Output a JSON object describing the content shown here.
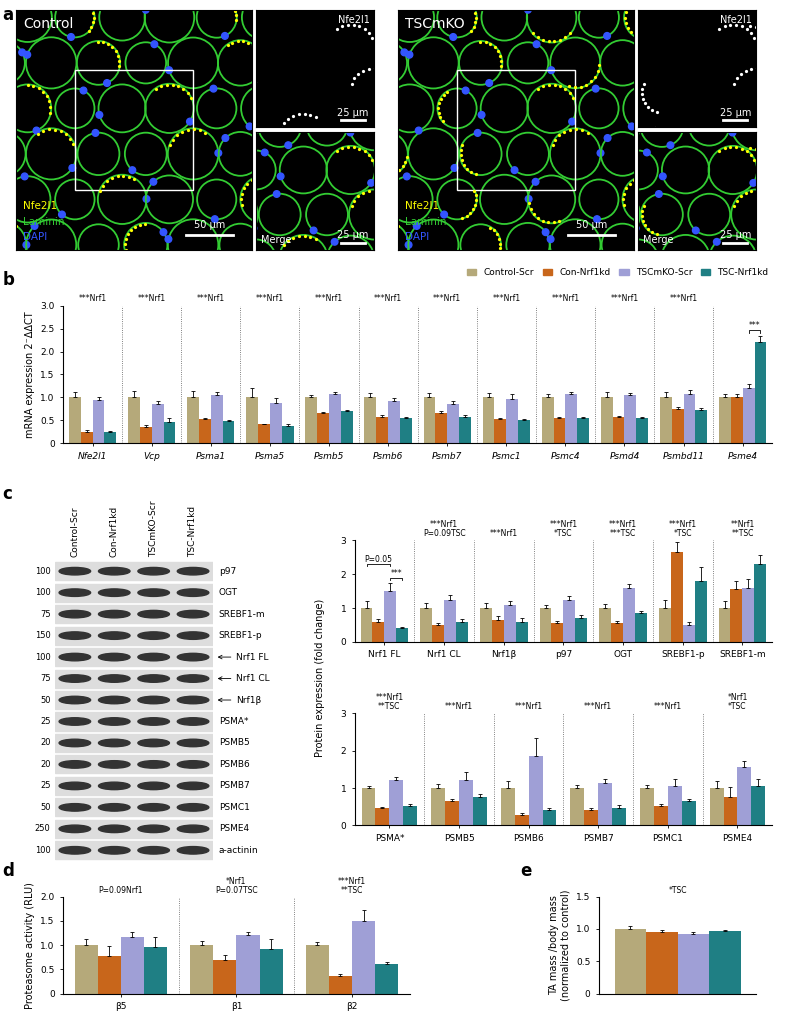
{
  "panel_labels": [
    "a",
    "b",
    "c",
    "d",
    "e"
  ],
  "images": [
    {
      "title": "Control",
      "channels": [
        {
          "name": "Nfe2l1",
          "color": "#ffff00"
        },
        {
          "name": "Laminin",
          "color": "#33cc33"
        },
        {
          "name": "DAPI",
          "color": "#3355ff"
        }
      ],
      "scale_bar": "50 µm",
      "insets": [
        {
          "label": "Nfe2l1",
          "scale_bar": "25 µm"
        },
        {
          "label": "Merge",
          "scale_bar": "25 µm"
        }
      ]
    },
    {
      "title": "TSCmKO",
      "channels": [
        {
          "name": "Nfe2l1",
          "color": "#ffff00"
        },
        {
          "name": "Laminin",
          "color": "#33cc33"
        },
        {
          "name": "DAPI",
          "color": "#3355ff"
        }
      ],
      "scale_bar": "50 µm",
      "insets": [
        {
          "label": "Nfe2l1",
          "scale_bar": "25 µm"
        },
        {
          "label": "Merge",
          "scale_bar": "25 µm"
        }
      ]
    }
  ],
  "blot": {
    "lanes": [
      "Control-Scr",
      "Con-Nrf1kd",
      "TSCmKO-Scr",
      "TSC-Nrf1kd"
    ],
    "rows": [
      {
        "label": "p97",
        "marker": 100
      },
      {
        "label": "OGT",
        "marker": 100
      },
      {
        "label": "SREBF1-m",
        "marker": 75
      },
      {
        "label": "SREBF1-p",
        "marker": 150
      },
      {
        "label": "Nrf1 FL",
        "marker": 100,
        "arrow": true
      },
      {
        "label": "Nrf1 CL",
        "marker": 75,
        "arrow": true
      },
      {
        "label": "Nrf1β",
        "marker": 50,
        "arrow": true
      },
      {
        "label": "PSMA*",
        "marker": 25
      },
      {
        "label": "PSMB5",
        "marker": 20
      },
      {
        "label": "PSMB6",
        "marker": 20
      },
      {
        "label": "PSMB7",
        "marker": 25
      },
      {
        "label": "PSMC1",
        "marker": 50
      },
      {
        "label": "PSME4",
        "marker": 250
      },
      {
        "label": "a-actinin",
        "marker": 100
      }
    ]
  },
  "chart_data": [
    {
      "type": "bar",
      "ylabel": "mRNA expression 2⁻ΔΔCT",
      "categories": [
        "Nfe2l1",
        "Vcp",
        "Psma1",
        "Psma5",
        "Psmb5",
        "Psmb6",
        "Psmb7",
        "Psmc1",
        "Psmc4",
        "Psmd4",
        "Psmbd11",
        "Psme4"
      ],
      "series": [
        {
          "name": "Control-Scr",
          "color": "#b5a97a",
          "values": [
            1,
            1,
            1,
            1,
            1,
            1,
            1,
            1,
            1,
            1,
            1,
            1
          ],
          "errors": [
            0.12,
            0.15,
            0.13,
            0.2,
            0.05,
            0.1,
            0.1,
            0.1,
            0.08,
            0.12,
            0.12,
            0.08
          ]
        },
        {
          "name": "Con-Nrf1kd",
          "color": "#c8661b",
          "values": [
            0.25,
            0.36,
            0.53,
            0.41,
            0.65,
            0.57,
            0.67,
            0.52,
            0.55,
            0.57,
            0.75,
            1.0
          ],
          "errors": [
            0.03,
            0.04,
            0.03,
            0.02,
            0.03,
            0.04,
            0.03,
            0.03,
            0.03,
            0.03,
            0.05,
            0.08
          ]
        },
        {
          "name": "TSCmKO-Scr",
          "color": "#9f9fd6",
          "values": [
            0.95,
            0.85,
            1.05,
            0.88,
            1.07,
            0.93,
            0.85,
            0.97,
            1.07,
            1.05,
            1.07,
            1.2
          ],
          "errors": [
            0.05,
            0.08,
            0.06,
            0.1,
            0.04,
            0.05,
            0.07,
            0.1,
            0.04,
            0.05,
            0.1,
            0.1
          ]
        },
        {
          "name": "TSC-Nrf1kd",
          "color": "#1f7f84",
          "values": [
            0.24,
            0.47,
            0.49,
            0.38,
            0.7,
            0.55,
            0.57,
            0.5,
            0.55,
            0.55,
            0.72,
            2.2
          ],
          "errors": [
            0.02,
            0.08,
            0.02,
            0.04,
            0.03,
            0.03,
            0.04,
            0.03,
            0.03,
            0.03,
            0.05,
            0.15
          ]
        }
      ],
      "ylim": [
        0,
        3
      ],
      "yticks": [
        0,
        0.5,
        {
          "value": 1,
          "label": "1.0"
        },
        1.5,
        {
          "value": 2,
          "label": "2.0"
        },
        2.5,
        {
          "value": 3,
          "label": "3.0"
        }
      ],
      "legend": "upper right",
      "annotations": [
        {
          "category": "Nfe2l1",
          "text": "***Nrf1"
        },
        {
          "category": "Vcp",
          "text": "***Nrf1"
        },
        {
          "category": "Psma1",
          "text": "***Nrf1"
        },
        {
          "category": "Psma5",
          "text": "***Nrf1"
        },
        {
          "category": "Psmb5",
          "text": "***Nrf1"
        },
        {
          "category": "Psmb6",
          "text": "***Nrf1"
        },
        {
          "category": "Psmb7",
          "text": "***Nrf1"
        },
        {
          "category": "Psmc1",
          "text": "***Nrf1"
        },
        {
          "category": "Psmc4",
          "text": "***Nrf1"
        },
        {
          "category": "Psmd4",
          "text": "***Nrf1"
        },
        {
          "category": "Psmbd11",
          "text": "***Nrf1"
        },
        {
          "category": "Psme4",
          "text": "***",
          "between": [
            "TSCmKO-Scr",
            "TSC-Nrf1kd"
          ]
        }
      ]
    },
    {
      "type": "bar",
      "ylabel": "Protein expression (fold change)",
      "categories": [
        "Nrf1 FL",
        "Nrf1 CL",
        "Nrf1β",
        "p97",
        "OGT",
        "SREBF1-p",
        "SREBF1-m"
      ],
      "series": [
        {
          "name": "Control-Scr",
          "color": "#b5a97a",
          "values": [
            1,
            1,
            1,
            1,
            1,
            1,
            1
          ],
          "errors": [
            0.2,
            0.15,
            0.15,
            0.1,
            0.12,
            0.25,
            0.2
          ]
        },
        {
          "name": "Con-Nrf1kd",
          "color": "#c8661b",
          "values": [
            0.6,
            0.5,
            0.65,
            0.55,
            0.55,
            2.65,
            1.55
          ],
          "errors": [
            0.08,
            0.07,
            0.12,
            0.06,
            0.08,
            0.3,
            0.25
          ]
        },
        {
          "name": "TSCmKO-Scr",
          "color": "#9f9fd6",
          "values": [
            1.5,
            1.25,
            1.1,
            1.25,
            1.6,
            0.5,
            1.6
          ],
          "errors": [
            0.25,
            0.12,
            0.12,
            0.1,
            0.12,
            0.1,
            0.25
          ]
        },
        {
          "name": "TSC-Nrf1kd",
          "color": "#1f7f84",
          "values": [
            0.4,
            0.6,
            0.6,
            0.7,
            0.85,
            1.8,
            2.3
          ],
          "errors": [
            0.05,
            0.08,
            0.12,
            0.08,
            0.06,
            0.4,
            0.25
          ]
        }
      ],
      "ylim": [
        0,
        3
      ],
      "yticks": [
        0,
        1,
        2,
        3
      ],
      "annotations": [
        {
          "category": "Nrf1 FL",
          "text": "***",
          "between": [
            "TSCmKO-Scr",
            "TSC-Nrf1kd"
          ]
        },
        {
          "category": "Nrf1 FL",
          "text": "P=0.05",
          "between": [
            "Control-Scr",
            "TSCmKO-Scr"
          ]
        },
        {
          "category": "Nrf1 CL",
          "text": "***Nrf1\nP=0.09TSC"
        },
        {
          "category": "Nrf1β",
          "text": "***Nrf1"
        },
        {
          "category": "p97",
          "text": "***Nrf1\n*TSC"
        },
        {
          "category": "OGT",
          "text": "***Nrf1\n***TSC"
        },
        {
          "category": "SREBF1-p",
          "text": "***Nrf1\n*TSC"
        },
        {
          "category": "SREBF1-m",
          "text": "**Nrf1\n**TSC"
        }
      ]
    },
    {
      "type": "bar",
      "categories": [
        "PSMA*",
        "PSMB5",
        "PSMB6",
        "PSMB7",
        "PSMC1",
        "PSME4"
      ],
      "series": [
        {
          "name": "Control-Scr",
          "color": "#b5a97a",
          "values": [
            1,
            1,
            1,
            1,
            1,
            1
          ],
          "errors": [
            0.06,
            0.1,
            0.2,
            0.08,
            0.08,
            0.2
          ]
        },
        {
          "name": "Con-Nrf1kd",
          "color": "#c8661b",
          "values": [
            0.47,
            0.65,
            0.28,
            0.42,
            0.52,
            0.77
          ],
          "errors": [
            0.03,
            0.05,
            0.06,
            0.05,
            0.04,
            0.25
          ]
        },
        {
          "name": "TSCmKO-Scr",
          "color": "#9f9fd6",
          "values": [
            1.22,
            1.22,
            1.85,
            1.13,
            1.05,
            1.57
          ],
          "errors": [
            0.08,
            0.2,
            0.5,
            0.12,
            0.2,
            0.15
          ]
        },
        {
          "name": "TSC-Nrf1kd",
          "color": "#1f7f84",
          "values": [
            0.53,
            0.77,
            0.4,
            0.47,
            0.65,
            1.05
          ],
          "errors": [
            0.05,
            0.06,
            0.07,
            0.07,
            0.05,
            0.2
          ]
        }
      ],
      "ylim": [
        0,
        3
      ],
      "yticks": [
        0,
        1,
        2,
        3
      ],
      "annotations": [
        {
          "category": "PSMA*",
          "text": "***Nrf1\n**TSC"
        },
        {
          "category": "PSMB5",
          "text": "***Nrf1"
        },
        {
          "category": "PSMB6",
          "text": "***Nrf1"
        },
        {
          "category": "PSMB7",
          "text": "***Nrf1"
        },
        {
          "category": "PSMC1",
          "text": "***Nrf1"
        },
        {
          "category": "PSME4",
          "text": "*Nrf1\n*TSC"
        }
      ]
    },
    {
      "type": "bar",
      "ylabel": "Proteasome activity (RLU)",
      "categories": [
        "β5",
        "β1",
        "β2"
      ],
      "series": [
        {
          "name": "Control-Scr",
          "color": "#b5a97a",
          "values": [
            1,
            1,
            1
          ],
          "errors": [
            0.12,
            0.08,
            0.06
          ]
        },
        {
          "name": "Con-Nrf1kd",
          "color": "#c8661b",
          "values": [
            0.78,
            0.7,
            0.37
          ],
          "errors": [
            0.2,
            0.1,
            0.04
          ]
        },
        {
          "name": "TSCmKO-Scr",
          "color": "#9f9fd6",
          "values": [
            1.17,
            1.2,
            1.5
          ],
          "errors": [
            0.1,
            0.08,
            0.22
          ]
        },
        {
          "name": "TSC-Nrf1kd",
          "color": "#1f7f84",
          "values": [
            0.97,
            0.92,
            0.6
          ],
          "errors": [
            0.2,
            0.2,
            0.05
          ]
        }
      ],
      "ylim": [
        0,
        2
      ],
      "yticks": [
        0,
        0.5,
        {
          "value": 1,
          "label": "1.0"
        },
        1.5,
        {
          "value": 2,
          "label": "2.0"
        }
      ],
      "annotations": [
        {
          "category": "β5",
          "text": "P=0.09Nrf1"
        },
        {
          "category": "β1",
          "text": "*Nrf1\nP=0.07TSC"
        },
        {
          "category": "β2",
          "text": "***Nrf1\n**TSC"
        }
      ]
    },
    {
      "type": "bar",
      "ylabel": "TA mass /body mass\n(normalized to control)",
      "categories": [
        null
      ],
      "series": [
        {
          "name": "Control-Scr",
          "color": "#b5a97a",
          "values": [
            1.0
          ],
          "errors": [
            0.04
          ]
        },
        {
          "name": "Con-Nrf1kd",
          "color": "#c8661b",
          "values": [
            0.95
          ],
          "errors": [
            0.04
          ]
        },
        {
          "name": "TSCmKO-Scr",
          "color": "#9f9fd6",
          "values": [
            0.93
          ],
          "errors": [
            0.03
          ]
        },
        {
          "name": "TSC-Nrf1kd",
          "color": "#1f7f84",
          "values": [
            0.97
          ],
          "errors": [
            0.02
          ]
        }
      ],
      "ylim": [
        0,
        1.5
      ],
      "yticks": [
        0,
        0.5,
        {
          "value": 1,
          "label": "1.0"
        },
        1.5
      ],
      "annotations": [
        {
          "category": null,
          "text": "*TSC"
        }
      ]
    }
  ]
}
